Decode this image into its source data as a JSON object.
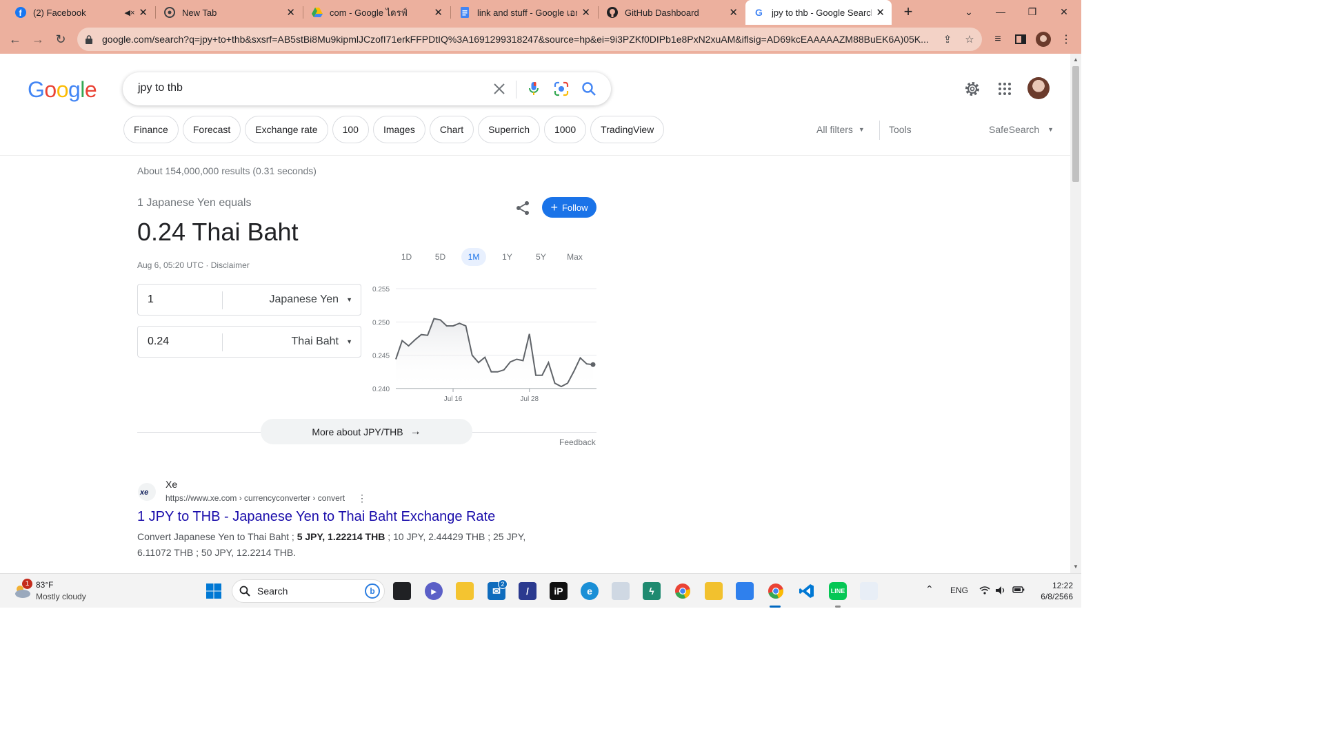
{
  "browser": {
    "tabs": [
      {
        "title": "(2) Facebook",
        "icon": "facebook-icon"
      },
      {
        "title": "New Tab",
        "icon": "chrome-icon"
      },
      {
        "title": "com - Google ไดรฟ์",
        "icon": "google-drive-icon"
      },
      {
        "title": "link and stuff - Google เอกส",
        "icon": "google-docs-icon"
      },
      {
        "title": "GitHub Dashboard",
        "icon": "github-icon"
      },
      {
        "title": "jpy to thb - Google Search",
        "icon": "google-icon"
      }
    ],
    "url": "google.com/search?q=jpy+to+thb&sxsrf=AB5stBi8Mu9kipmlJCzofI71erkFFPDtIQ%3A1691299318247&source=hp&ei=9i3PZKf0DIPb1e8PxN2xuAM&iflsig=AD69kcEAAAAAZM88BuEK6A)05K..."
  },
  "search": {
    "logo": "Google",
    "query": "jpy to thb",
    "chips": [
      "Finance",
      "Forecast",
      "Exchange rate",
      "100",
      "Images",
      "Chart",
      "Superrich",
      "1000",
      "TradingView"
    ],
    "all_filters": "All filters",
    "tools": "Tools",
    "safesearch": "SafeSearch",
    "stats": "About 154,000,000 results (0.31 seconds)"
  },
  "converter": {
    "equals_text": "1 Japanese Yen equals",
    "result": "0.24 Thai Baht",
    "timestamp": "Aug 6, 05:20 UTC",
    "separator": " · ",
    "disclaimer": "Disclaimer",
    "follow_label": "Follow",
    "ranges": [
      "1D",
      "5D",
      "1M",
      "1Y",
      "5Y",
      "Max"
    ],
    "selected_range": "1M",
    "from_amount": "1",
    "from_currency": "Japanese Yen",
    "to_amount": "0.24",
    "to_currency": "Thai Baht",
    "more_label": "More about JPY/THB",
    "feedback": "Feedback"
  },
  "chart_data": {
    "type": "line",
    "title": "",
    "xlabel": "",
    "ylabel": "",
    "ylim": [
      0.24,
      0.255
    ],
    "y_ticks": [
      "0.255",
      "0.250",
      "0.245",
      "0.240"
    ],
    "x_ticks": [
      "Jul 16",
      "Jul 28"
    ],
    "grid": true,
    "color": "#5f6368",
    "series": [
      {
        "values": [
          0.2444,
          0.2472,
          0.2464,
          0.2473,
          0.2481,
          0.248,
          0.2505,
          0.2503,
          0.2494,
          0.2494,
          0.2498,
          0.2494,
          0.245,
          0.2439,
          0.2447,
          0.2425,
          0.2425,
          0.2428,
          0.244,
          0.2444,
          0.2442,
          0.2482,
          0.242,
          0.242,
          0.2439,
          0.2408,
          0.2403,
          0.2408,
          0.2426,
          0.2446,
          0.2437,
          0.2436
        ]
      }
    ],
    "x_tick_index": [
      9,
      21
    ]
  },
  "result": {
    "site": "Xe",
    "favicon": "xe",
    "url": "https://www.xe.com › currencyconverter › convert",
    "title": "1 JPY to THB - Japanese Yen to Thai Baht Exchange Rate",
    "snippet_a": "Convert Japanese Yen to Thai Baht ; ",
    "snippet_b": "5 JPY, 1.22214 THB",
    "snippet_c": " ; 10 JPY, 2.44429 THB ; 25 JPY, 6.11072 THB ; 50 JPY, 12.2214 THB."
  },
  "taskbar": {
    "weather_badge": "1",
    "temperature": "83°F",
    "weather": "Mostly cloudy",
    "search_label": "Search",
    "mail_badge": "2",
    "lang": "ENG",
    "time": "12:22",
    "date": "6/8/2566"
  },
  "colors": {
    "chrome_tabbar": "#ecb09e",
    "link_blue": "#1a0dab",
    "accent_blue": "#1a73e8"
  }
}
